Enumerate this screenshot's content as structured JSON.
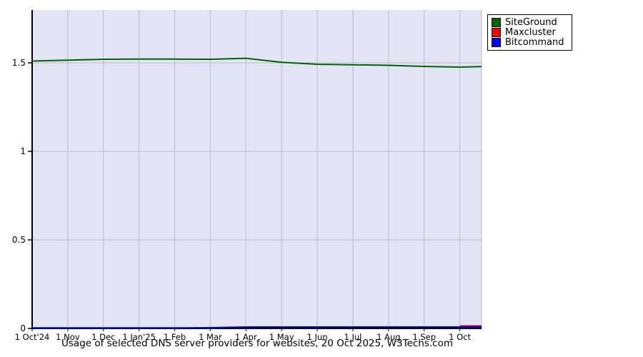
{
  "chart_data": {
    "type": "line",
    "title": "Usage of selected DNS server providers for websites, 20 Oct 2025, W3Techs.com",
    "xlabel": "",
    "ylabel": "",
    "x_axis": {
      "unit": "month (1 Oct 2024 – 20 Oct 2025)",
      "tick_labels": [
        "1 Oct'24",
        "1 Nov",
        "1 Dec",
        "1 Jan'25",
        "1 Feb",
        "1 Mar",
        "1 Apr",
        "1 May",
        "1 Jun",
        "1 Jul",
        "1 Aug",
        "1 Sep",
        "1 Oct"
      ],
      "tick_months": [
        0,
        1,
        2,
        3,
        4,
        5,
        6,
        7,
        8,
        9,
        10,
        11,
        12
      ],
      "range_months": [
        0,
        12.61
      ]
    },
    "y_axis": {
      "tick_labels": [
        "0",
        "0.5",
        "1",
        "1.5"
      ],
      "tick_values": [
        0,
        0.5,
        1,
        1.5
      ],
      "range": [
        0,
        1.8
      ]
    },
    "grid": true,
    "legend_position": "top-right-outside",
    "colors": {
      "plot_bg": "#e4e4f6",
      "grid": "#bbbbc3",
      "axis": "#000000",
      "text": "#000000",
      "page_bg": "#ffffff"
    },
    "series": [
      {
        "name": "SiteGround",
        "line_color": "#006400",
        "swatch_color": "#006400",
        "points": [
          [
            0,
            1.51
          ],
          [
            1,
            1.515
          ],
          [
            2,
            1.52
          ],
          [
            3,
            1.521
          ],
          [
            4,
            1.521
          ],
          [
            5,
            1.52
          ],
          [
            6,
            1.526
          ],
          [
            7,
            1.503
          ],
          [
            8,
            1.492
          ],
          [
            9,
            1.489
          ],
          [
            10,
            1.486
          ],
          [
            11,
            1.48
          ],
          [
            12,
            1.476
          ],
          [
            12.61,
            1.479
          ]
        ]
      },
      {
        "name": "Maxcluster",
        "line_color": "#cc0033",
        "swatch_color": "#ff0000",
        "points": [
          [
            12,
            0.014
          ],
          [
            12.61,
            0.014
          ]
        ]
      },
      {
        "name": "Bitcommand",
        "line_color": "#0000cc",
        "swatch_color": "#0000ff",
        "points": [
          [
            0,
            0.003
          ],
          [
            1,
            0.003
          ],
          [
            2,
            0.003
          ],
          [
            3,
            0.003
          ],
          [
            4,
            0.003
          ],
          [
            5,
            0.004
          ],
          [
            6,
            0.008
          ],
          [
            7,
            0.008
          ],
          [
            8,
            0.008
          ],
          [
            9,
            0.008
          ],
          [
            10,
            0.008
          ],
          [
            11,
            0.008
          ],
          [
            12,
            0.008
          ],
          [
            12.61,
            0.008
          ]
        ]
      }
    ]
  }
}
